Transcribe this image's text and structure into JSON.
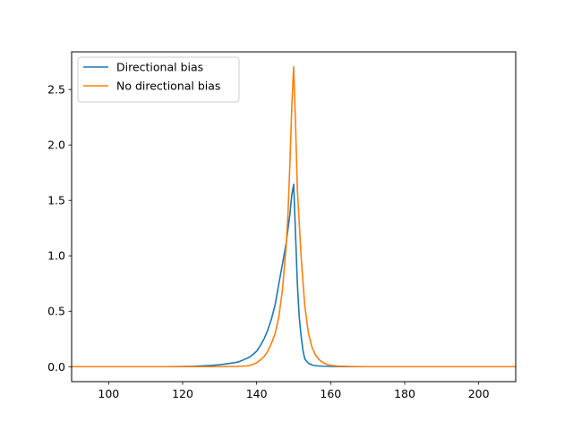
{
  "chart_data": {
    "type": "line",
    "title": "",
    "xlabel": "",
    "ylabel": "",
    "xlim": [
      90,
      210
    ],
    "ylim": [
      -0.135,
      2.84
    ],
    "xticks": [
      100,
      120,
      140,
      160,
      180,
      200
    ],
    "yticks": [
      0.0,
      0.5,
      1.0,
      1.5,
      2.0,
      2.5
    ],
    "grid": false,
    "legend": "top-left",
    "series": [
      {
        "name": "Directional bias",
        "color": "#1f77b4",
        "points": [
          [
            90,
            0.0
          ],
          [
            100,
            0.0
          ],
          [
            110,
            0.0
          ],
          [
            115,
            0.0
          ],
          [
            120,
            0.002
          ],
          [
            123,
            0.004
          ],
          [
            125,
            0.007
          ],
          [
            128,
            0.012
          ],
          [
            130,
            0.018
          ],
          [
            132,
            0.026
          ],
          [
            134,
            0.036
          ],
          [
            135,
            0.042
          ],
          [
            136,
            0.055
          ],
          [
            137,
            0.07
          ],
          [
            138,
            0.085
          ],
          [
            139,
            0.11
          ],
          [
            140,
            0.14
          ],
          [
            141,
            0.19
          ],
          [
            142,
            0.25
          ],
          [
            143,
            0.33
          ],
          [
            144,
            0.43
          ],
          [
            145,
            0.56
          ],
          [
            146,
            0.75
          ],
          [
            147,
            0.93
          ],
          [
            148,
            1.12
          ],
          [
            149,
            1.38
          ],
          [
            149.5,
            1.55
          ],
          [
            150,
            1.645
          ],
          [
            150.5,
            1.2
          ],
          [
            151,
            0.75
          ],
          [
            151.5,
            0.45
          ],
          [
            152,
            0.28
          ],
          [
            152.5,
            0.15
          ],
          [
            153,
            0.07
          ],
          [
            154,
            0.03
          ],
          [
            155,
            0.015
          ],
          [
            156,
            0.008
          ],
          [
            158,
            0.004
          ],
          [
            160,
            0.002
          ],
          [
            165,
            0.0
          ],
          [
            170,
            0.0
          ],
          [
            180,
            0.0
          ],
          [
            190,
            0.0
          ],
          [
            200,
            0.0
          ],
          [
            210,
            0.0
          ]
        ]
      },
      {
        "name": "No directional bias",
        "color": "#ff7f0e",
        "points": [
          [
            90,
            0.0
          ],
          [
            100,
            0.0
          ],
          [
            110,
            0.0
          ],
          [
            120,
            0.0
          ],
          [
            125,
            0.0
          ],
          [
            130,
            0.0
          ],
          [
            132,
            0.001
          ],
          [
            134,
            0.002
          ],
          [
            136,
            0.004
          ],
          [
            137,
            0.006
          ],
          [
            138,
            0.01
          ],
          [
            139,
            0.02
          ],
          [
            140,
            0.035
          ],
          [
            141,
            0.06
          ],
          [
            142,
            0.09
          ],
          [
            143,
            0.14
          ],
          [
            144,
            0.21
          ],
          [
            145,
            0.3
          ],
          [
            146,
            0.45
          ],
          [
            147,
            0.7
          ],
          [
            148,
            1.1
          ],
          [
            148.5,
            1.4
          ],
          [
            149,
            1.85
          ],
          [
            149.5,
            2.35
          ],
          [
            150,
            2.705
          ],
          [
            150.5,
            2.2
          ],
          [
            151,
            1.6
          ],
          [
            152,
            1.0
          ],
          [
            153,
            0.55
          ],
          [
            154,
            0.3
          ],
          [
            155,
            0.17
          ],
          [
            156,
            0.1
          ],
          [
            157,
            0.06
          ],
          [
            158,
            0.035
          ],
          [
            159,
            0.02
          ],
          [
            160,
            0.012
          ],
          [
            162,
            0.005
          ],
          [
            165,
            0.002
          ],
          [
            170,
            0.0
          ],
          [
            180,
            0.0
          ],
          [
            190,
            0.0
          ],
          [
            200,
            0.0
          ],
          [
            210,
            0.0
          ]
        ]
      }
    ]
  }
}
